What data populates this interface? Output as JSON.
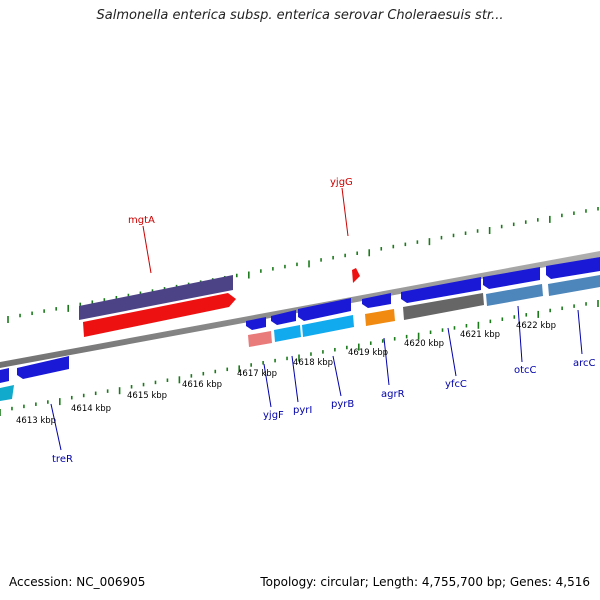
{
  "header": {
    "title": "Salmonella enterica subsp. enterica serovar Choleraesuis str..."
  },
  "footer": {
    "accession": "Accession: NC_006905",
    "summary": "Topology: circular; Length: 4,755,700 bp; Genes: 4,516"
  },
  "colors": {
    "backbone": "#888888",
    "tick": "#1a7a1a",
    "forward_label": "#cc0000",
    "reverse_label": "#0000aa"
  },
  "scale_ticks": [
    {
      "label": "4613 kbp"
    },
    {
      "label": "4614 kbp"
    },
    {
      "label": "4615 kbp"
    },
    {
      "label": "4616 kbp"
    },
    {
      "label": "4617 kbp"
    },
    {
      "label": "4618 kbp"
    },
    {
      "label": "4619 kbp"
    },
    {
      "label": "4620 kbp"
    },
    {
      "label": "4621 kbp"
    },
    {
      "label": "4622 kbp"
    }
  ],
  "gene_labels": {
    "mgtA": "mgtA",
    "yjgG": "yjgG",
    "treR": "treR",
    "yjgF": "yjgF",
    "pyrI": "pyrI",
    "pyrB": "pyrB",
    "argR": "agrR",
    "yfcC": "yfcC",
    "otcC": "otcC",
    "arcC": "arcC"
  }
}
